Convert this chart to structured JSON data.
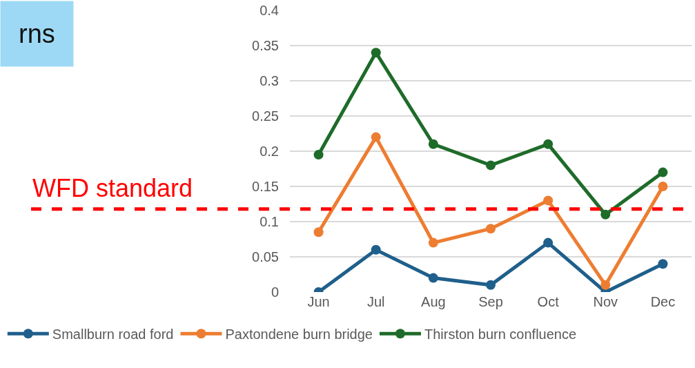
{
  "chart_data": {
    "type": "line",
    "categories": [
      "Jun",
      "Jul",
      "Aug",
      "Sep",
      "Oct",
      "Nov",
      "Dec"
    ],
    "series": [
      {
        "name": "Smallburn road ford",
        "color": "#1f5f8b",
        "values": [
          0,
          0.06,
          0.02,
          0.01,
          0.07,
          0,
          0.04
        ]
      },
      {
        "name": "Paxtondene burn bridge",
        "color": "#ed7d31",
        "values": [
          0.085,
          0.22,
          0.07,
          0.09,
          0.13,
          0.01,
          0.15
        ]
      },
      {
        "name": "Thirston burn confluence",
        "color": "#1e6b2a",
        "values": [
          0.195,
          0.34,
          0.21,
          0.18,
          0.21,
          0.11,
          0.17
        ]
      }
    ],
    "ylim": [
      0,
      0.4
    ],
    "yticks": [
      0,
      0.05,
      0.1,
      0.15,
      0.2,
      0.25,
      0.3,
      0.35,
      0.4
    ],
    "ref_lines": [
      {
        "axis": "y",
        "value": 0.118,
        "label": "WFD standard",
        "color": "#ff0000",
        "line_style": "dashed"
      }
    ],
    "annotations": [
      "rns"
    ],
    "grid": "y",
    "legend": "bottom",
    "marker": "circle",
    "line_style": "solid"
  }
}
